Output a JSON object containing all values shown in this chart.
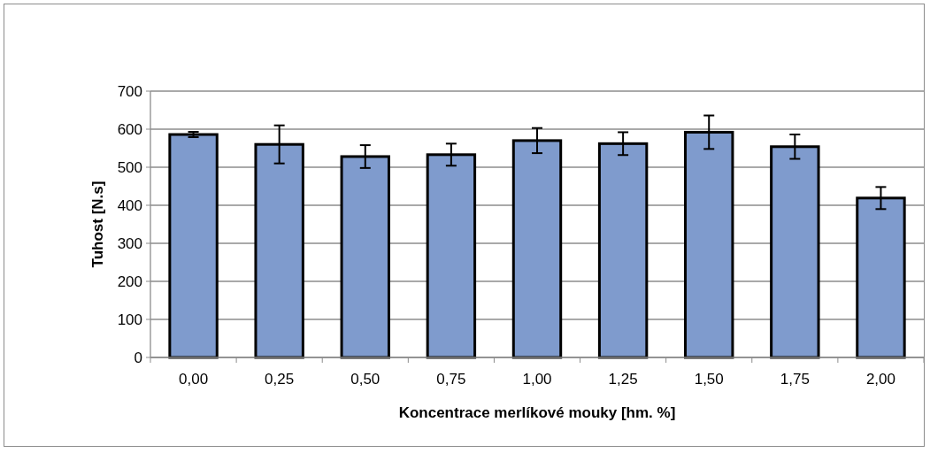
{
  "chart_data": {
    "type": "bar",
    "xlabel": "Koncentrace merlíkové mouky [hm. %]",
    "ylabel": "Tuhost [N.s]",
    "categories": [
      "0,00",
      "0,25",
      "0,50",
      "0,75",
      "1,00",
      "1,25",
      "1,50",
      "1,75",
      "2,00"
    ],
    "values": [
      586,
      560,
      528,
      533,
      570,
      562,
      592,
      554,
      419
    ],
    "errors": [
      7,
      50,
      30,
      29,
      33,
      30,
      44,
      32,
      29
    ],
    "color": "#7f9bcd",
    "ylim": [
      0,
      700
    ],
    "yticks": [
      0,
      100,
      200,
      300,
      400,
      500,
      600,
      700
    ],
    "grid": "y"
  }
}
